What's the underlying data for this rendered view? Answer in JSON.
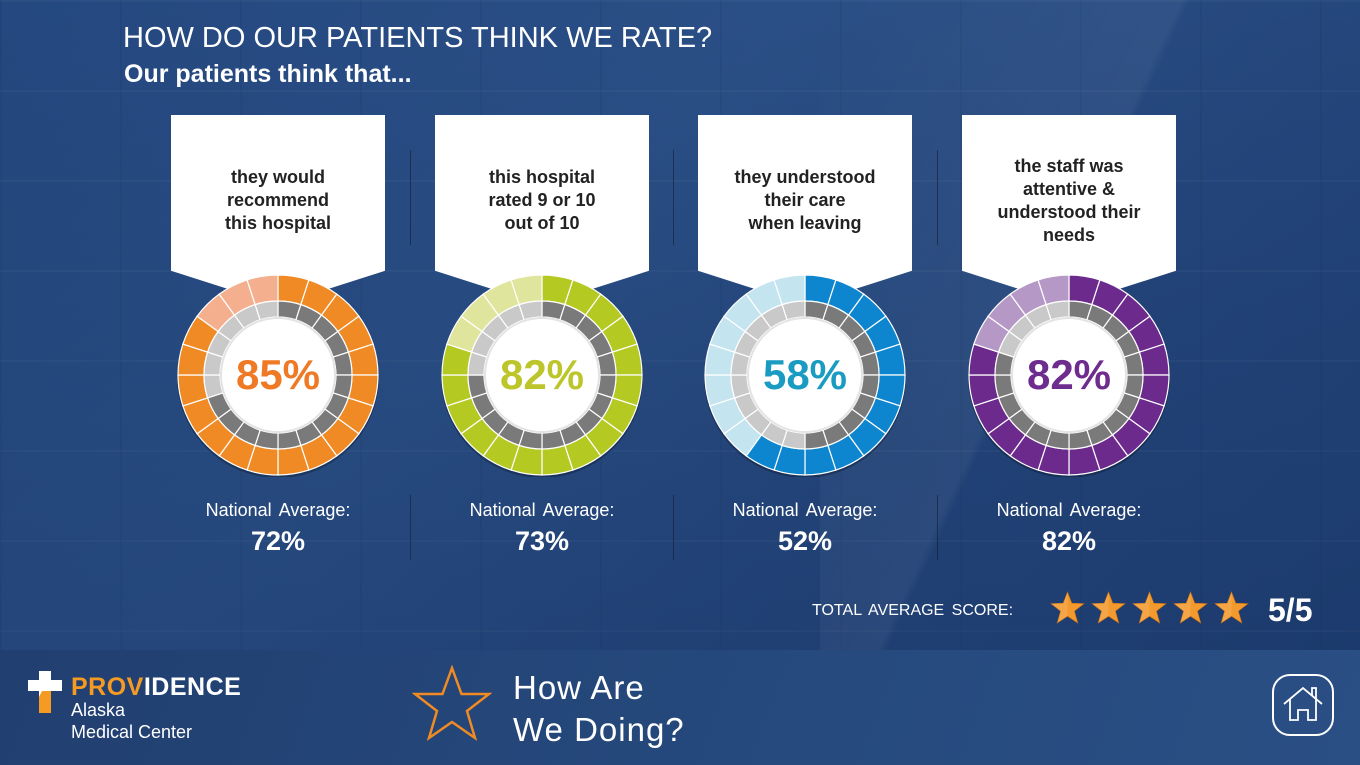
{
  "header": {
    "title": "HOW DO OUR PATIENTS THINK WE RATE?",
    "subtitle": "Our patients think that..."
  },
  "metrics": [
    {
      "statement": "they would\nrecommend\nthis hospital",
      "value": 85,
      "value_label": "85%",
      "national_average": 72,
      "national_label": "National Average:",
      "national_value_label": "72%",
      "color": "#f08a24",
      "light_color": "#f4b08e",
      "text_color": "#ef7a26"
    },
    {
      "statement": "this hospital\nrated 9 or 10\nout of 10",
      "value": 82,
      "value_label": "82%",
      "national_average": 73,
      "national_label": "National Average:",
      "national_value_label": "73%",
      "color": "#b5c923",
      "light_color": "#dfe59c",
      "text_color": "#bcc52a"
    },
    {
      "statement": "they understood\ntheir care\nwhen leaving",
      "value": 58,
      "value_label": "58%",
      "national_average": 52,
      "national_label": "National Average:",
      "national_value_label": "52%",
      "color": "#0e86cf",
      "light_color": "#c4e4ef",
      "text_color": "#1a9bc1"
    },
    {
      "statement": "the staff was\nattentive &\nunderstood their\nneeds",
      "value": 82,
      "value_label": "82%",
      "national_average": 82,
      "national_label": "National Average:",
      "national_value_label": "82%",
      "color": "#6b2a8c",
      "light_color": "#b598c6",
      "text_color": "#6e2c8e"
    }
  ],
  "ring": {
    "segments": 20,
    "inner_dark": "#7a7a7a",
    "inner_light": "#c9c9c9"
  },
  "summary": {
    "label": "TOTAL  AVERAGE SCORE:",
    "stars": 5,
    "max_stars": 5,
    "score_label": "5/5",
    "star_color": "#f39a2e"
  },
  "footer": {
    "brand_orange": "PROV",
    "brand_white": "IDENCE",
    "brand_sub": "Alaska\nMedical Center",
    "tagline": "How Are\nWe Doing?",
    "home_icon": "home-icon"
  }
}
